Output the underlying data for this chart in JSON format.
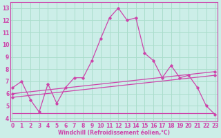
{
  "xlabel": "Windchill (Refroidissement éolien,°C)",
  "background_color": "#cceee8",
  "grid_color": "#aaddcc",
  "line_color": "#cc44aa",
  "x_ticks": [
    0,
    1,
    2,
    3,
    4,
    5,
    6,
    7,
    8,
    9,
    10,
    11,
    12,
    13,
    14,
    15,
    16,
    17,
    18,
    19,
    20,
    21,
    22,
    23
  ],
  "y_ticks": [
    4,
    5,
    6,
    7,
    8,
    9,
    10,
    11,
    12,
    13
  ],
  "ylim": [
    3.7,
    13.5
  ],
  "xlim": [
    -0.3,
    23.3
  ],
  "series1_x": [
    0,
    1,
    2,
    3,
    4,
    5,
    6,
    7,
    8,
    9,
    10,
    11,
    12,
    13,
    14,
    15,
    16,
    17,
    18,
    19,
    20,
    21,
    22,
    23
  ],
  "series1_y": [
    6.5,
    7.0,
    5.5,
    4.5,
    6.8,
    5.2,
    6.5,
    7.3,
    7.3,
    8.7,
    10.5,
    12.2,
    13.0,
    12.0,
    12.2,
    9.3,
    8.7,
    7.3,
    8.3,
    7.3,
    7.5,
    6.5,
    5.0,
    4.3
  ],
  "series2_x": [
    0,
    23
  ],
  "series2_y": [
    6.0,
    7.8
  ],
  "series3_x": [
    0,
    23
  ],
  "series3_y": [
    5.7,
    7.5
  ],
  "series4_x": [
    0,
    3,
    23
  ],
  "series4_y": [
    4.4,
    4.4,
    4.4
  ],
  "tick_fontsize": 5.5,
  "xlabel_fontsize": 5.5
}
